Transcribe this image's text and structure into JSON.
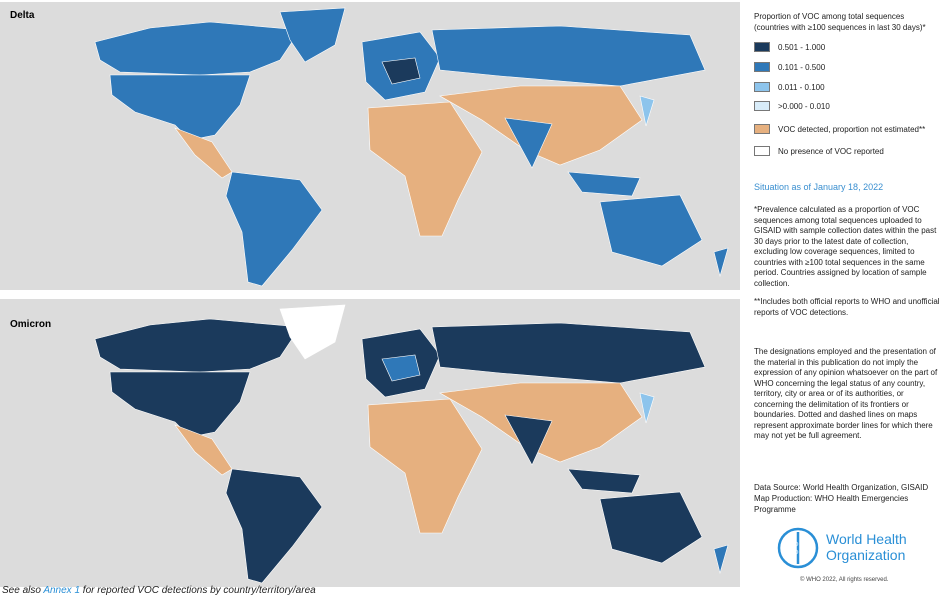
{
  "panels": [
    {
      "label": "Delta"
    },
    {
      "label": "Omicron"
    }
  ],
  "legend": {
    "title": "Proportion of VOC among total sequences (countries with ≥100 sequences in last 30 days)*",
    "items": [
      "0.501 - 1.000",
      "0.101 - 0.500",
      "0.011 - 0.100",
      ">0.000 - 0.010",
      "VOC detected, proportion not estimated**",
      "No presence of VOC reported"
    ]
  },
  "situation": "Situation as of January 18, 2022",
  "notes": [
    "*Prevalence calculated as a proportion of VOC sequences among total sequences uploaded to GISAID with sample collection dates within the past 30 days prior to the latest date of collection, excluding low coverage sequences, limited to countries with ≥100 total sequences in the same period. Countries assigned by location of sample collection.",
    "**Includes both official reports to WHO and unofficial reports of VOC detections."
  ],
  "disclaimer": "The designations employed and the presentation of the material in this publication do not imply the expression of any opinion whatsoever on the part of WHO concerning the legal status of any country, territory, city or area or of its authorities, or concerning the delimitation of its frontiers or boundaries. Dotted and dashed lines on maps represent approximate border lines for which there may not yet be full agreement.",
  "source": [
    "Data Source: World Health Organization, GISAID",
    "Map Production: WHO Health Emergencies Programme"
  ],
  "logo": [
    "World Health",
    "Organization"
  ],
  "copyright": "© WHO 2022, All rights reserved.",
  "caption": {
    "before": "See also ",
    "link": "Annex 1",
    "after": " for reported VOC detections by country/territory/area"
  }
}
